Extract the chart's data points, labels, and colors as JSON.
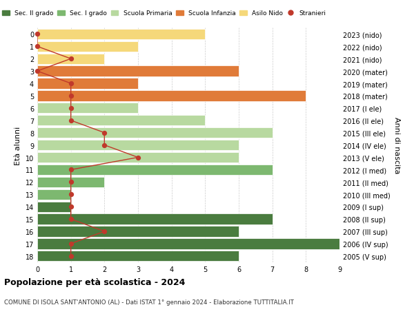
{
  "ages": [
    18,
    17,
    16,
    15,
    14,
    13,
    12,
    11,
    10,
    9,
    8,
    7,
    6,
    5,
    4,
    3,
    2,
    1,
    0
  ],
  "right_labels": [
    "2005 (V sup)",
    "2006 (IV sup)",
    "2007 (III sup)",
    "2008 (II sup)",
    "2009 (I sup)",
    "2010 (III med)",
    "2011 (II med)",
    "2012 (I med)",
    "2013 (V ele)",
    "2014 (IV ele)",
    "2015 (III ele)",
    "2016 (II ele)",
    "2017 (I ele)",
    "2018 (mater)",
    "2019 (mater)",
    "2020 (mater)",
    "2021 (nido)",
    "2022 (nido)",
    "2023 (nido)"
  ],
  "bar_values": [
    6,
    9,
    6,
    7,
    1,
    1,
    2,
    7,
    6,
    6,
    7,
    5,
    3,
    8,
    3,
    6,
    2,
    3,
    5
  ],
  "bar_colors": [
    "#4a7c3f",
    "#4a7c3f",
    "#4a7c3f",
    "#4a7c3f",
    "#4a7c3f",
    "#7db870",
    "#7db870",
    "#7db870",
    "#b8d9a0",
    "#b8d9a0",
    "#b8d9a0",
    "#b8d9a0",
    "#b8d9a0",
    "#e07b39",
    "#e07b39",
    "#e07b39",
    "#f5d87a",
    "#f5d87a",
    "#f5d87a"
  ],
  "stranieri_values": [
    1,
    1,
    2,
    1,
    1,
    1,
    1,
    1,
    3,
    2,
    2,
    1,
    1,
    1,
    1,
    0,
    1,
    0,
    0
  ],
  "stranieri_color": "#c0392b",
  "legend_labels": [
    "Sec. II grado",
    "Sec. I grado",
    "Scuola Primaria",
    "Scuola Infanzia",
    "Asilo Nido",
    "Stranieri"
  ],
  "legend_colors": [
    "#4a7c3f",
    "#7db870",
    "#b8d9a0",
    "#e07b39",
    "#f5d87a",
    "#c0392b"
  ],
  "title": "Popolazione per età scolastica - 2024",
  "subtitle": "COMUNE DI ISOLA SANT'ANTONIO (AL) - Dati ISTAT 1° gennaio 2024 - Elaborazione TUTTITALIA.IT",
  "ylabel": "Età alunni",
  "ylabel_right": "Anni di nascita",
  "xlim": [
    0,
    9
  ],
  "background_color": "#ffffff",
  "grid_color": "#cccccc"
}
